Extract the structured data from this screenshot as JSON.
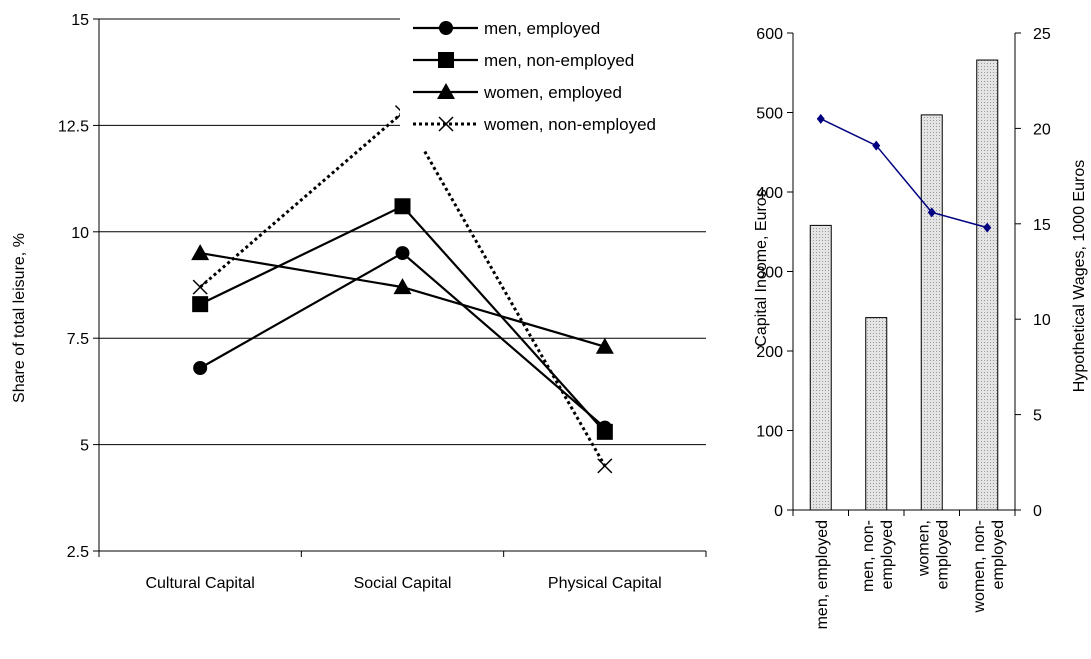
{
  "chart_data": [
    {
      "type": "line",
      "title": "",
      "ylabel": "Share of total leisure, %",
      "xlabel": "",
      "ylim": [
        2.5,
        15
      ],
      "yticks": [
        "2.5",
        "5",
        "7.5",
        "10",
        "12.5",
        "15"
      ],
      "grid": true,
      "legend_position": "top-right",
      "categories": [
        "Cultural Capital",
        "Social Capital",
        "Physical Capital"
      ],
      "series": [
        {
          "name": "men, employed",
          "values": [
            6.8,
            9.5,
            5.4
          ],
          "marker": "circle",
          "line": "solid",
          "color": "#000000"
        },
        {
          "name": "men, non-employed",
          "values": [
            8.3,
            10.6,
            5.3
          ],
          "marker": "square",
          "line": "solid",
          "color": "#000000"
        },
        {
          "name": "women, employed",
          "values": [
            9.5,
            8.7,
            7.3
          ],
          "marker": "triangle",
          "line": "solid",
          "color": "#000000"
        },
        {
          "name": "women, non-employed",
          "values": [
            8.7,
            12.8,
            4.5
          ],
          "marker": "x",
          "line": "dotted",
          "color": "#000000"
        }
      ]
    },
    {
      "type": "bar",
      "title": "",
      "categories": [
        "men, employed",
        "men, non-employed",
        "women, employed",
        "women, non-employed"
      ],
      "category_label_lines": [
        [
          "men, employed"
        ],
        [
          "men, non-",
          "employed"
        ],
        [
          "women,",
          "employed"
        ],
        [
          "women, non-",
          "employed"
        ]
      ],
      "ylabel": "Capital Income, Euros",
      "ylim": [
        0,
        600
      ],
      "yticks": [
        "0",
        "100",
        "200",
        "300",
        "400",
        "500",
        "600"
      ],
      "values": [
        358,
        242,
        497,
        566
      ],
      "bar_fill": "#e4e4e4",
      "secondary": {
        "type": "line",
        "ylabel": "Hypothetical Wages, 1000 Euros",
        "ylim": [
          0,
          25
        ],
        "yticks": [
          "0",
          "5",
          "10",
          "15",
          "20",
          "25"
        ],
        "values": [
          20.5,
          19.1,
          15.6,
          14.8
        ],
        "color": "#000080"
      }
    }
  ]
}
